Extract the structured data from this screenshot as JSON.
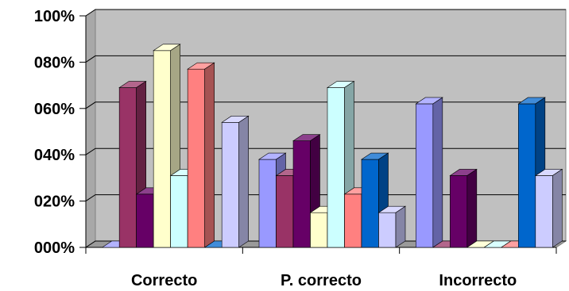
{
  "chart_data": {
    "type": "bar",
    "title": "",
    "xlabel": "",
    "ylabel": "",
    "ylim": [
      0,
      100
    ],
    "yticks": [
      "000%",
      "020%",
      "040%",
      "060%",
      "080%",
      "100%"
    ],
    "ytick_values": [
      0,
      20,
      40,
      60,
      80,
      100
    ],
    "categories": [
      "Correcto",
      "P. correcto",
      "Incorrecto"
    ],
    "grid": true,
    "legend": "none",
    "three_d": true,
    "series": [
      {
        "values": [
          0,
          38,
          62
        ],
        "color": "#9999FF"
      },
      {
        "values": [
          69,
          31,
          0
        ],
        "color": "#993366"
      },
      {
        "values": [
          23,
          46,
          31
        ],
        "color": "#660066"
      },
      {
        "values": [
          85,
          15,
          0
        ],
        "color": "#FFFFCC"
      },
      {
        "values": [
          31,
          69,
          0
        ],
        "color": "#CCFFFF"
      },
      {
        "values": [
          77,
          23,
          0
        ],
        "color": "#FF8080"
      },
      {
        "values": [
          0,
          38,
          62
        ],
        "color": "#0066CC"
      },
      {
        "values": [
          54,
          15,
          31
        ],
        "color": "#CCCCFF"
      }
    ]
  }
}
